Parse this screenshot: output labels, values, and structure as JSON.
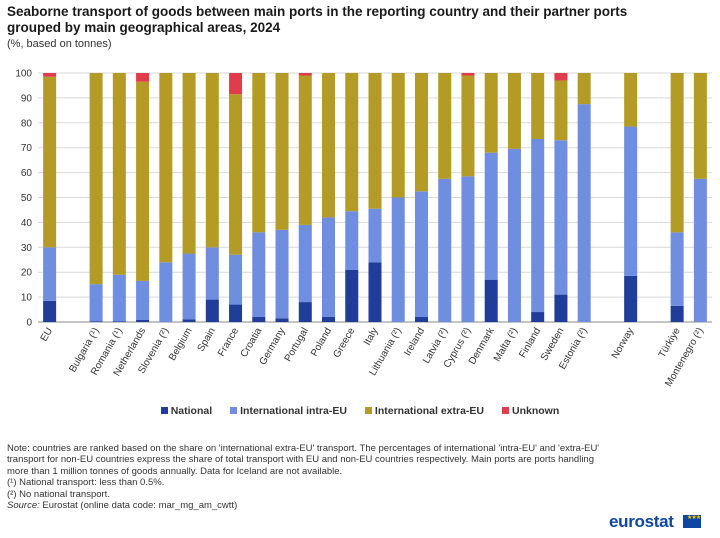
{
  "header": {
    "title": "Seaborne transport of goods between main ports in the reporting country and their partner ports grouped by main geographical areas, 2024",
    "subtitle": "(%, based on tonnes)"
  },
  "chart_data": {
    "type": "bar",
    "stacked": true,
    "ylim": [
      0,
      100
    ],
    "yticks": [
      0,
      10,
      20,
      30,
      40,
      50,
      60,
      70,
      80,
      90,
      100
    ],
    "grid": true,
    "legend_position": "bottom",
    "categories": [
      "EU",
      "Bulgaria (¹)",
      "Romania (¹)",
      "Netherlands",
      "Slovenia (²)",
      "Belgium",
      "Spain",
      "France",
      "Croatia",
      "Germany",
      "Portugal",
      "Poland",
      "Greece",
      "Italy",
      "Lithuania (²)",
      "Ireland",
      "Latvia (²)",
      "Cyprus (²)",
      "Denmark",
      "Malta (²)",
      "Finland",
      "Sweden",
      "Estonia (²)",
      "Norway",
      "Türkiye",
      "Montenegro (²)"
    ],
    "groups": [
      [
        "EU"
      ],
      [
        "Bulgaria (¹)",
        "Romania (¹)",
        "Netherlands",
        "Slovenia (²)",
        "Belgium",
        "Spain",
        "France",
        "Croatia",
        "Germany",
        "Portugal",
        "Poland",
        "Greece",
        "Italy",
        "Lithuania (²)",
        "Ireland",
        "Latvia (²)",
        "Cyprus (²)",
        "Denmark",
        "Malta (²)",
        "Finland",
        "Sweden",
        "Estonia (²)"
      ],
      [
        "Norway"
      ],
      [
        "Türkiye",
        "Montenegro (²)"
      ]
    ],
    "series": [
      {
        "name": "National",
        "color": "#1f3d99",
        "values": [
          8.5,
          0.2,
          0.2,
          0.8,
          0,
          1,
          9,
          7,
          2,
          1.5,
          8,
          2,
          21,
          24,
          0,
          2,
          0,
          0,
          17,
          0,
          4,
          11,
          0,
          18.5,
          6.5,
          0
        ]
      },
      {
        "name": "International intra-EU",
        "color": "#6f8ee0",
        "values": [
          21.5,
          15,
          18.8,
          15.7,
          24,
          26.5,
          21,
          20,
          34,
          35.5,
          31,
          40,
          23.5,
          21.5,
          50,
          50.5,
          57.5,
          58.5,
          51,
          69.5,
          69.5,
          62,
          87.5,
          60,
          29.5,
          57.5
        ]
      },
      {
        "name": "International extra-EU",
        "color": "#b49b26",
        "values": [
          68.5,
          84.8,
          81,
          80,
          76,
          72.5,
          70,
          64.5,
          64,
          63,
          60,
          58,
          55.5,
          54.5,
          50,
          47.5,
          42.5,
          40.5,
          32,
          30.5,
          26.5,
          24,
          12.5,
          21.5,
          64,
          42.5
        ]
      },
      {
        "name": "Unknown",
        "color": "#e03c4b",
        "values": [
          1.5,
          0,
          0,
          3.5,
          0,
          0,
          0,
          8.5,
          0,
          0,
          1,
          0,
          0,
          0,
          0,
          0,
          0,
          1,
          0,
          0,
          0,
          3,
          0,
          0,
          0,
          0
        ]
      }
    ]
  },
  "notes": {
    "main": "Note: countries are ranked based on the share on 'international extra-EU' transport. The percentages of international 'intra-EU' and 'extra-EU' transport for non-EU countries express the share of total transport with EU and non-EU countries respectively. Main ports are ports handling more than 1 million tonnes of goods annually. Data for Iceland are not available.",
    "footnote1": "(¹) National transport: less than 0.5%.",
    "footnote2": "(²) No national transport.",
    "source_label": "Source:",
    "source_text": "Eurostat (online data code: mar_mg_am_cwtt)"
  },
  "branding": {
    "logo_text": "eurostat",
    "logo_color": "#0e47a1"
  }
}
